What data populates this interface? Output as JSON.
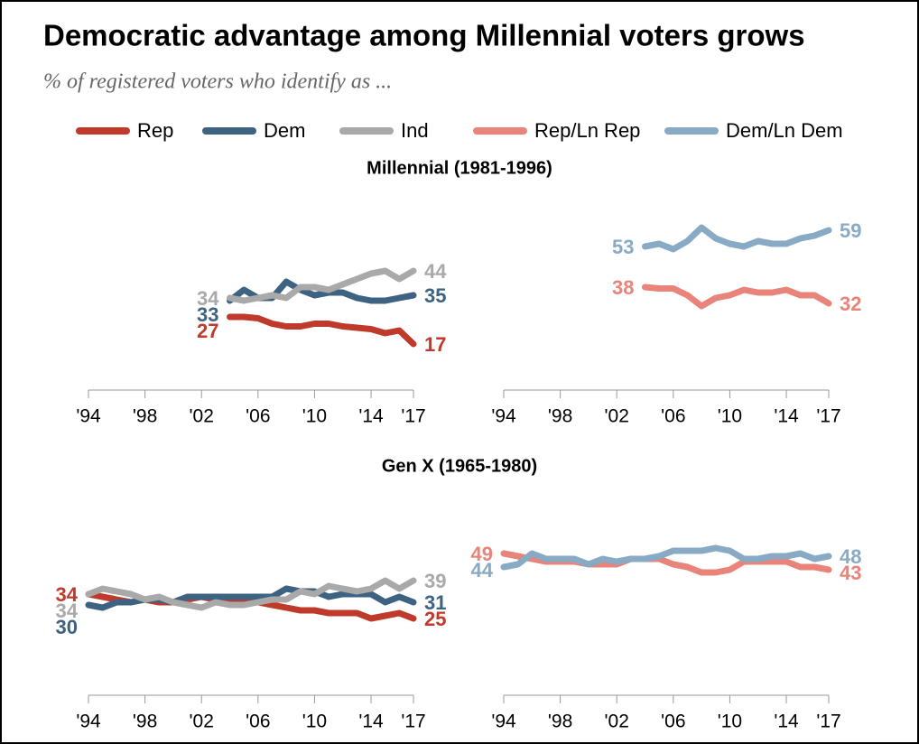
{
  "title": "Democratic advantage among Millennial voters grows",
  "subtitle": "% of registered voters who identify as ...",
  "chart_data": [
    {
      "type": "line",
      "title": "Millennial (1981-1996)",
      "x": [
        2004,
        2005,
        2006,
        2007,
        2008,
        2009,
        2010,
        2011,
        2012,
        2013,
        2014,
        2015,
        2016,
        2017
      ],
      "xlim": [
        1994,
        2017
      ],
      "xticks": [
        {
          "value": 1994,
          "label": "'94"
        },
        {
          "value": 1998,
          "label": "'98"
        },
        {
          "value": 2002,
          "label": "'02"
        },
        {
          "value": 2006,
          "label": "'06"
        },
        {
          "value": 2010,
          "label": "'10"
        },
        {
          "value": 2014,
          "label": "'14"
        },
        {
          "value": 2017,
          "label": "'17"
        }
      ],
      "ylim": [
        0,
        70
      ],
      "series": [
        {
          "name": "Rep",
          "color": "#bf3a2b",
          "values": [
            27,
            27,
            26.5,
            24.5,
            23.5,
            23.5,
            24.5,
            24.5,
            23.5,
            23,
            22.5,
            21,
            22,
            17
          ]
        },
        {
          "name": "Dem",
          "color": "#3d6282",
          "values": [
            33,
            37,
            34,
            34,
            40,
            37,
            35,
            36,
            36,
            34,
            33,
            33,
            34,
            35
          ]
        },
        {
          "name": "Ind",
          "color": "#a9a9a9",
          "values": [
            34,
            33,
            34,
            35,
            34,
            38,
            38,
            37,
            39,
            41,
            43,
            44,
            41,
            44
          ]
        }
      ]
    },
    {
      "type": "line",
      "x": [
        2004,
        2005,
        2006,
        2007,
        2008,
        2009,
        2010,
        2011,
        2012,
        2013,
        2014,
        2015,
        2016,
        2017
      ],
      "xlim": [
        1994,
        2017
      ],
      "xticks": [
        {
          "value": 1994,
          "label": "'94"
        },
        {
          "value": 1998,
          "label": "'98"
        },
        {
          "value": 2002,
          "label": "'02"
        },
        {
          "value": 2006,
          "label": "'06"
        },
        {
          "value": 2010,
          "label": "'10"
        },
        {
          "value": 2014,
          "label": "'14"
        },
        {
          "value": 2017,
          "label": "'17"
        }
      ],
      "ylim": [
        0,
        70
      ],
      "series": [
        {
          "name": "Rep/Ln Rep",
          "color": "#e8847a",
          "values": [
            38,
            37.5,
            37.5,
            35,
            31,
            34,
            35,
            37,
            36,
            36,
            37,
            35,
            35,
            32
          ]
        },
        {
          "name": "Dem/Ln Dem",
          "color": "#88aac4",
          "values": [
            53,
            54,
            52,
            55,
            60,
            56,
            54,
            53,
            55,
            54,
            54,
            56,
            57,
            59
          ]
        }
      ]
    },
    {
      "type": "line",
      "title": "Gen X (1965-1980)",
      "x": [
        1994,
        1995,
        1996,
        1997,
        1998,
        1999,
        2000,
        2001,
        2002,
        2003,
        2004,
        2005,
        2006,
        2007,
        2008,
        2009,
        2010,
        2011,
        2012,
        2013,
        2014,
        2015,
        2016,
        2017
      ],
      "xlim": [
        1994,
        2017
      ],
      "xticks": [
        {
          "value": 1994,
          "label": "'94"
        },
        {
          "value": 1998,
          "label": "'98"
        },
        {
          "value": 2002,
          "label": "'02"
        },
        {
          "value": 2006,
          "label": "'06"
        },
        {
          "value": 2010,
          "label": "'10"
        },
        {
          "value": 2014,
          "label": "'14"
        },
        {
          "value": 2017,
          "label": "'17"
        }
      ],
      "ylim": [
        0,
        70
      ],
      "series": [
        {
          "color": "#bf3a2b",
          "values": [
            34,
            33,
            32,
            31,
            32,
            31,
            31,
            32,
            33,
            32,
            32,
            32,
            31,
            30,
            29,
            28,
            28,
            27,
            27,
            27,
            25,
            26,
            27,
            25
          ]
        },
        {
          "color": "#3d6282",
          "values": [
            30,
            29,
            31,
            31,
            32,
            32,
            31,
            33,
            33,
            33,
            33,
            33,
            33,
            33,
            36,
            35,
            35,
            33,
            34,
            34,
            34,
            31,
            33,
            31
          ]
        },
        {
          "color": "#a9a9a9",
          "values": [
            34,
            36,
            35,
            34,
            32,
            33,
            31,
            30,
            29,
            31,
            30,
            30,
            31,
            32,
            32,
            35,
            34,
            37,
            36,
            35,
            36,
            39,
            36,
            39
          ]
        }
      ]
    },
    {
      "type": "line",
      "x": [
        1994,
        1995,
        1996,
        1997,
        1998,
        1999,
        2000,
        2001,
        2002,
        2003,
        2004,
        2005,
        2006,
        2007,
        2008,
        2009,
        2010,
        2011,
        2012,
        2013,
        2014,
        2015,
        2016,
        2017
      ],
      "xlim": [
        1994,
        2017
      ],
      "xticks": [
        {
          "value": 1994,
          "label": "'94"
        },
        {
          "value": 1998,
          "label": "'98"
        },
        {
          "value": 2002,
          "label": "'02"
        },
        {
          "value": 2006,
          "label": "'06"
        },
        {
          "value": 2010,
          "label": "'10"
        },
        {
          "value": 2014,
          "label": "'14"
        },
        {
          "value": 2017,
          "label": "'17"
        }
      ],
      "ylim": [
        0,
        70
      ],
      "series": [
        {
          "color": "#e8847a",
          "values": [
            49,
            48,
            47,
            46,
            46,
            46,
            45,
            45,
            45,
            47,
            47,
            47,
            45,
            44,
            42,
            42,
            43,
            46,
            46,
            46,
            46,
            44,
            44,
            43
          ]
        },
        {
          "color": "#88aac4",
          "values": [
            44,
            45,
            49,
            47,
            47,
            47,
            45,
            47,
            46,
            47,
            47,
            48,
            50,
            50,
            50,
            51,
            50,
            47,
            47,
            48,
            48,
            49,
            47,
            48
          ]
        }
      ]
    }
  ]
}
